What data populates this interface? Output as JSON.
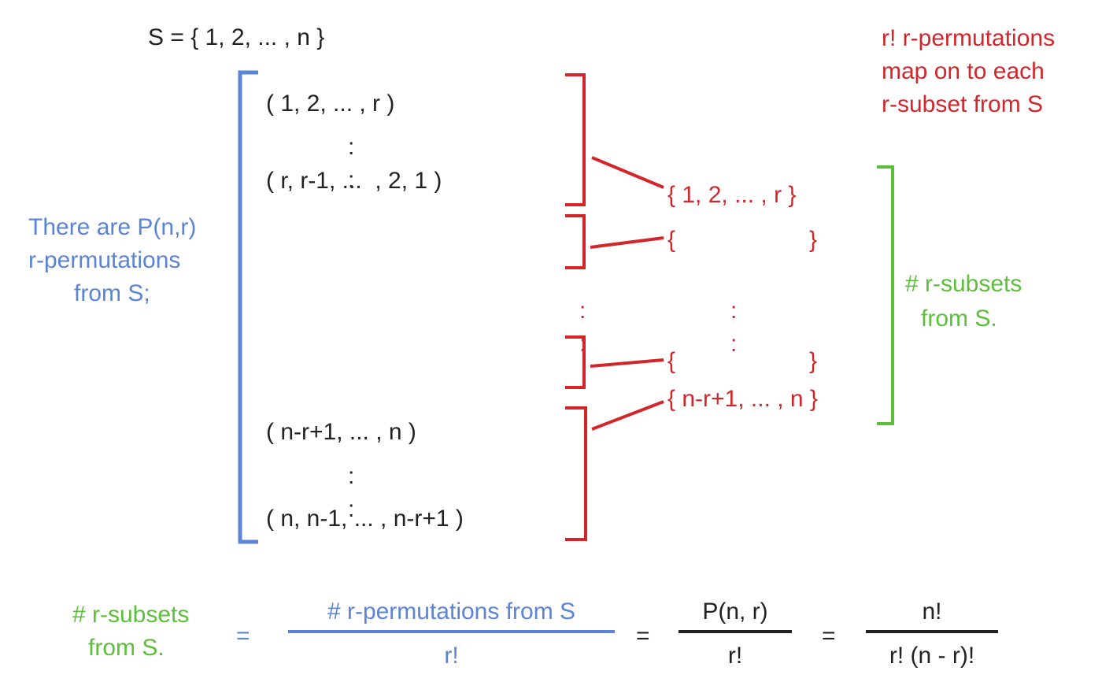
{
  "set_def": "S = { 1, 2, ... , n }",
  "permutations": {
    "first": "( 1, 2, ... , r )",
    "dots1": ":",
    "second": "( r, r-1, ...  , 2, 1 )",
    "third": "( n-r+1, ... , n )",
    "dots2": ":",
    "fourth": "( n, n-1, ... , n-r+1 )"
  },
  "left_note": [
    "There are P(n,r)",
    "r-permutations",
    "from S;"
  ],
  "right_note": [
    "r! r-permutations",
    "map on to each",
    "r-subset from S"
  ],
  "subsets": {
    "first": "{ 1, 2, ... , r }",
    "blank_open_1": "{",
    "blank_close_1": "}",
    "dots_mid": ":",
    "dots_right": ":",
    "blank_open_2": "{",
    "blank_close_2": "}",
    "last": "{ n-r+1, ... , n }"
  },
  "subset_note": [
    "# r-subsets",
    "from S."
  ],
  "formula": {
    "lhs": [
      "# r-subsets",
      "from S."
    ],
    "eq1": "=",
    "frac1_num": "# r-permutations from S",
    "frac1_den": "r!",
    "eq2": "=",
    "frac2_num": "P(n, r)",
    "frac2_den": "r!",
    "eq3": "=",
    "frac3_num": "n!",
    "frac3_den": "r! (n - r)!"
  },
  "colors": {
    "black": "#222222",
    "blue": "#5b84d6",
    "red": "#d2262b",
    "green": "#5cbf3a"
  }
}
